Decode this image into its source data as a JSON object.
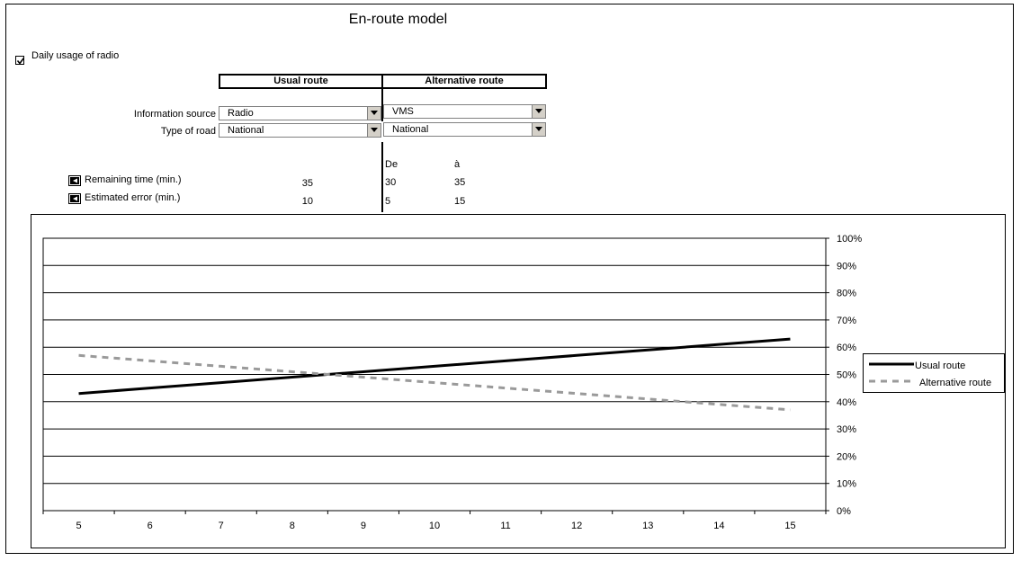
{
  "title": "En-route model",
  "daily_usage": {
    "label": "Daily usage of radio",
    "checked": true
  },
  "columns": {
    "usual": "Usual route",
    "alternative": "Alternative route"
  },
  "rows": {
    "information_source": {
      "label": "Information source",
      "usual": "Radio",
      "alternative": "VMS"
    },
    "type_of_road": {
      "label": "Type of road",
      "usual": "National",
      "alternative": "National"
    }
  },
  "range_headers": {
    "from": "De",
    "to": "à"
  },
  "remaining_time": {
    "label": "Remaining time (min.)",
    "usual": "35",
    "alt_from": "30",
    "alt_to": "35"
  },
  "estimated_error": {
    "label": "Estimated error (min.)",
    "usual": "10",
    "alt_from": "5",
    "alt_to": "15"
  },
  "chart_data": {
    "type": "line",
    "x": [
      5,
      6,
      7,
      8,
      9,
      10,
      11,
      12,
      13,
      14,
      15
    ],
    "x_ticks": [
      "5",
      "6",
      "7",
      "8",
      "9",
      "10",
      "11",
      "12",
      "13",
      "14",
      "15"
    ],
    "y_ticks": [
      "0%",
      "10%",
      "20%",
      "30%",
      "40%",
      "50%",
      "60%",
      "70%",
      "80%",
      "90%",
      "100%"
    ],
    "ylim": [
      0,
      100
    ],
    "y_axis_side": "right",
    "grid": "horizontal",
    "legend_position": "right",
    "series": [
      {
        "name": "Usual route",
        "style": "solid",
        "color": "#000000",
        "values": [
          43,
          45,
          47,
          49,
          51,
          53,
          55,
          57,
          59,
          61,
          63
        ]
      },
      {
        "name": "Alternative route",
        "style": "dashed",
        "color": "#9a9a9a",
        "values": [
          57,
          55,
          53,
          51,
          49,
          47,
          45,
          43,
          41,
          39,
          37
        ]
      }
    ]
  }
}
